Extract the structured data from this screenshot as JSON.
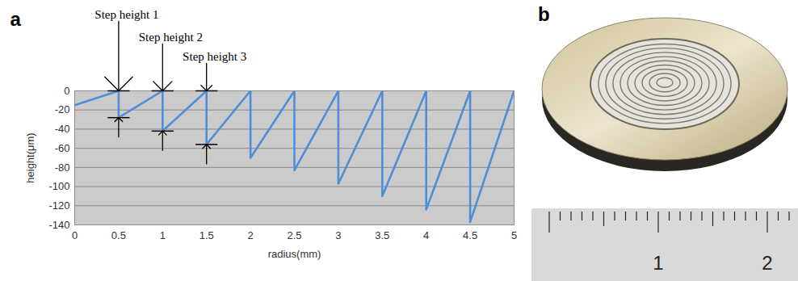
{
  "chart_data": {
    "type": "line",
    "panel_label": "a",
    "x_label": "radius(mm)",
    "y_label": "height(μm)",
    "x": [
      0,
      0.5,
      0.5,
      1,
      1,
      1.5,
      1.5,
      2,
      2,
      2.5,
      2.5,
      3,
      3,
      3.5,
      3.5,
      4,
      4,
      4.5,
      4.5,
      5
    ],
    "values": [
      -15,
      0,
      -28,
      0,
      -42,
      0,
      -56,
      0,
      -70,
      0,
      -83,
      0,
      -97,
      0,
      -110,
      0,
      -124,
      0,
      -137,
      0
    ],
    "color": "#4f8fd8",
    "xlim": [
      0,
      5
    ],
    "xticks": [
      0,
      0.5,
      1,
      1.5,
      2,
      2.5,
      3,
      3.5,
      4,
      4.5,
      5
    ],
    "ylim": [
      -140,
      0
    ],
    "yticks": [
      0,
      -20,
      -40,
      -60,
      -80,
      -100,
      -120,
      -140
    ],
    "grid": true,
    "annotations": [
      {
        "text": "Step height 1",
        "x": 0.5,
        "y1": 0,
        "y2": -28
      },
      {
        "text": "Step height 2",
        "x": 1,
        "y1": 0,
        "y2": -42
      },
      {
        "text": "Step height 3",
        "x": 1.5,
        "y1": 0,
        "y2": -56
      }
    ]
  },
  "photo": {
    "panel_label": "b",
    "ruler_labels": [
      "1",
      "2"
    ]
  }
}
